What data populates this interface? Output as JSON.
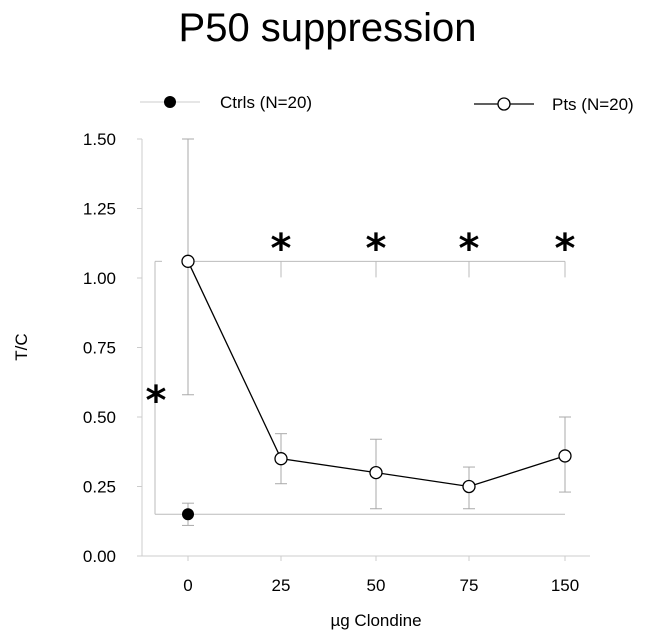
{
  "chart_data": {
    "type": "line",
    "title": "P50 suppression",
    "xlabel": "µg Clondine",
    "ylabel": "T/C",
    "categories": [
      "0",
      "25",
      "50",
      "75",
      "150"
    ],
    "yticks": [
      "0.00",
      "0.25",
      "0.50",
      "0.75",
      "1.00",
      "1.25",
      "1.50"
    ],
    "ylim": [
      0,
      1.5
    ],
    "grid": false,
    "legend_position": "top",
    "series": [
      {
        "name": "Ctrls (N=20)",
        "marker": "filled-circle",
        "points": [
          {
            "x": "0",
            "y": 0.15,
            "err_low": 0.11,
            "err_high": 0.19
          }
        ]
      },
      {
        "name": "Pts (N=20)",
        "marker": "open-circle",
        "points": [
          {
            "x": "0",
            "y": 1.06,
            "err_low": 0.58,
            "err_high": 1.5
          },
          {
            "x": "25",
            "y": 0.35,
            "err_low": 0.26,
            "err_high": 0.44
          },
          {
            "x": "50",
            "y": 0.3,
            "err_low": 0.17,
            "err_high": 0.42
          },
          {
            "x": "75",
            "y": 0.25,
            "err_low": 0.17,
            "err_high": 0.32
          },
          {
            "x": "150",
            "y": 0.36,
            "err_low": 0.23,
            "err_high": 0.5
          }
        ]
      }
    ],
    "significance": {
      "marker": "*",
      "reference_y": 1.06,
      "categories": [
        "25",
        "50",
        "75",
        "150"
      ],
      "bracket": {
        "from_y": 1.06,
        "to_y": 0.15
      }
    },
    "colors": {
      "line": "#000000",
      "error_bar": "#aaaaaa",
      "bracket": "#bbbbbb"
    }
  }
}
